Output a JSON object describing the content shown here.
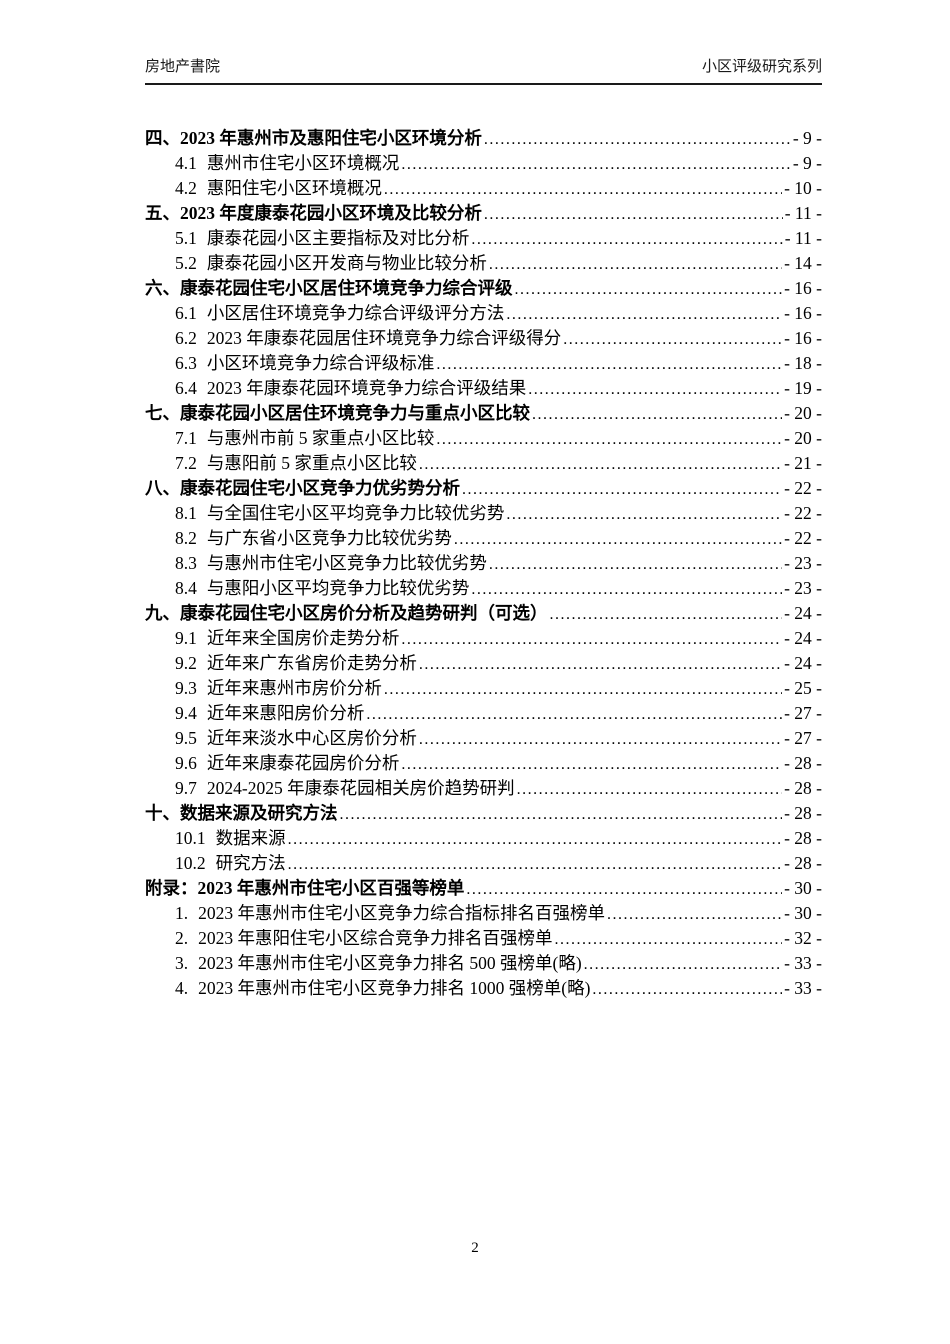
{
  "header": {
    "left": "房地产書院",
    "right": "小区评级研究系列"
  },
  "toc": {
    "items": [
      {
        "level": 1,
        "num": "四、",
        "label": "2023 年惠州市及惠阳住宅小区环境分析",
        "page": "- 9 -"
      },
      {
        "level": 2,
        "num": "4.1",
        "label": "惠州市住宅小区环境概况",
        "page": "- 9 -"
      },
      {
        "level": 2,
        "num": "4.2",
        "label": "惠阳住宅小区环境概况",
        "page": "- 10 -"
      },
      {
        "level": 1,
        "num": "五、",
        "label": "2023 年度康泰花园小区环境及比较分析",
        "page": "- 11 -"
      },
      {
        "level": 2,
        "num": "5.1",
        "label": "康泰花园小区主要指标及对比分析",
        "page": "- 11 -"
      },
      {
        "level": 2,
        "num": "5.2",
        "label": "康泰花园小区开发商与物业比较分析",
        "page": "- 14 -"
      },
      {
        "level": 1,
        "num": "六、",
        "label": "康泰花园住宅小区居住环境竞争力综合评级",
        "page": "- 16 -"
      },
      {
        "level": 2,
        "num": "6.1",
        "label": "小区居住环境竞争力综合评级评分方法",
        "page": "- 16 -"
      },
      {
        "level": 2,
        "num": "6.2",
        "label": "2023 年康泰花园居住环境竞争力综合评级得分",
        "page": "- 16 -"
      },
      {
        "level": 2,
        "num": "6.3",
        "label": "小区环境竞争力综合评级标准",
        "page": "- 18 -"
      },
      {
        "level": 2,
        "num": "6.4",
        "label": "2023 年康泰花园环境竞争力综合评级结果",
        "page": "- 19 -"
      },
      {
        "level": 1,
        "num": "七、",
        "label": "康泰花园小区居住环境竞争力与重点小区比较",
        "page": "- 20 -"
      },
      {
        "level": 2,
        "num": "7.1",
        "label": "与惠州市前 5 家重点小区比较",
        "page": "- 20 -"
      },
      {
        "level": 2,
        "num": "7.2",
        "label": "与惠阳前 5 家重点小区比较",
        "page": "- 21 -"
      },
      {
        "level": 1,
        "num": "八、",
        "label": "康泰花园住宅小区竞争力优劣势分析",
        "page": "- 22 -"
      },
      {
        "level": 2,
        "num": "8.1",
        "label": "与全国住宅小区平均竞争力比较优劣势",
        "page": "- 22 -"
      },
      {
        "level": 2,
        "num": "8.2",
        "label": "与广东省小区竞争力比较优劣势",
        "page": "- 22 -"
      },
      {
        "level": 2,
        "num": "8.3",
        "label": "与惠州市住宅小区竞争力比较优劣势",
        "page": "- 23 -"
      },
      {
        "level": 2,
        "num": "8.4",
        "label": "与惠阳小区平均竞争力比较优劣势",
        "page": "- 23 -"
      },
      {
        "level": 1,
        "num": "九、",
        "label": "康泰花园住宅小区房价分析及趋势研判（可选）",
        "page": "- 24 -"
      },
      {
        "level": 2,
        "num": "9.1",
        "label": "近年来全国房价走势分析",
        "page": "- 24 -"
      },
      {
        "level": 2,
        "num": "9.2",
        "label": "近年来广东省房价走势分析",
        "page": "- 24 -"
      },
      {
        "level": 2,
        "num": "9.3",
        "label": "近年来惠州市房价分析",
        "page": "- 25 -"
      },
      {
        "level": 2,
        "num": "9.4",
        "label": "近年来惠阳房价分析",
        "page": "- 27 -"
      },
      {
        "level": 2,
        "num": "9.5",
        "label": "近年来淡水中心区房价分析",
        "page": "- 27 -"
      },
      {
        "level": 2,
        "num": "9.6",
        "label": "近年来康泰花园房价分析",
        "page": "- 28 -"
      },
      {
        "level": 2,
        "num": "9.7",
        "label": "2024-2025 年康泰花园相关房价趋势研判",
        "page": "- 28 -"
      },
      {
        "level": 1,
        "num": "十、",
        "label": "数据来源及研究方法",
        "page": "- 28 -"
      },
      {
        "level": 2,
        "num": "10.1",
        "label": "数据来源",
        "page": "- 28 -"
      },
      {
        "level": 2,
        "num": "10.2",
        "label": "研究方法",
        "page": "- 28 -"
      },
      {
        "level": 1,
        "num": "附录：",
        "label": "2023 年惠州市住宅小区百强等榜单",
        "page": "- 30 -"
      },
      {
        "level": 2,
        "num": "1.",
        "label": "2023 年惠州市住宅小区竞争力综合指标排名百强榜单",
        "page": "- 30 -"
      },
      {
        "level": 2,
        "num": "2.",
        "label": "2023 年惠阳住宅小区综合竞争力排名百强榜单",
        "page": "- 32 -"
      },
      {
        "level": 2,
        "num": "3.",
        "label": "2023 年惠州市住宅小区竞争力排名 500 强榜单(略)",
        "page": "- 33 -"
      },
      {
        "level": 2,
        "num": "4.",
        "label": "2023 年惠州市住宅小区竞争力排名 1000 强榜单(略)",
        "page": "- 33 -"
      }
    ]
  },
  "footer": {
    "page_number": "2"
  }
}
